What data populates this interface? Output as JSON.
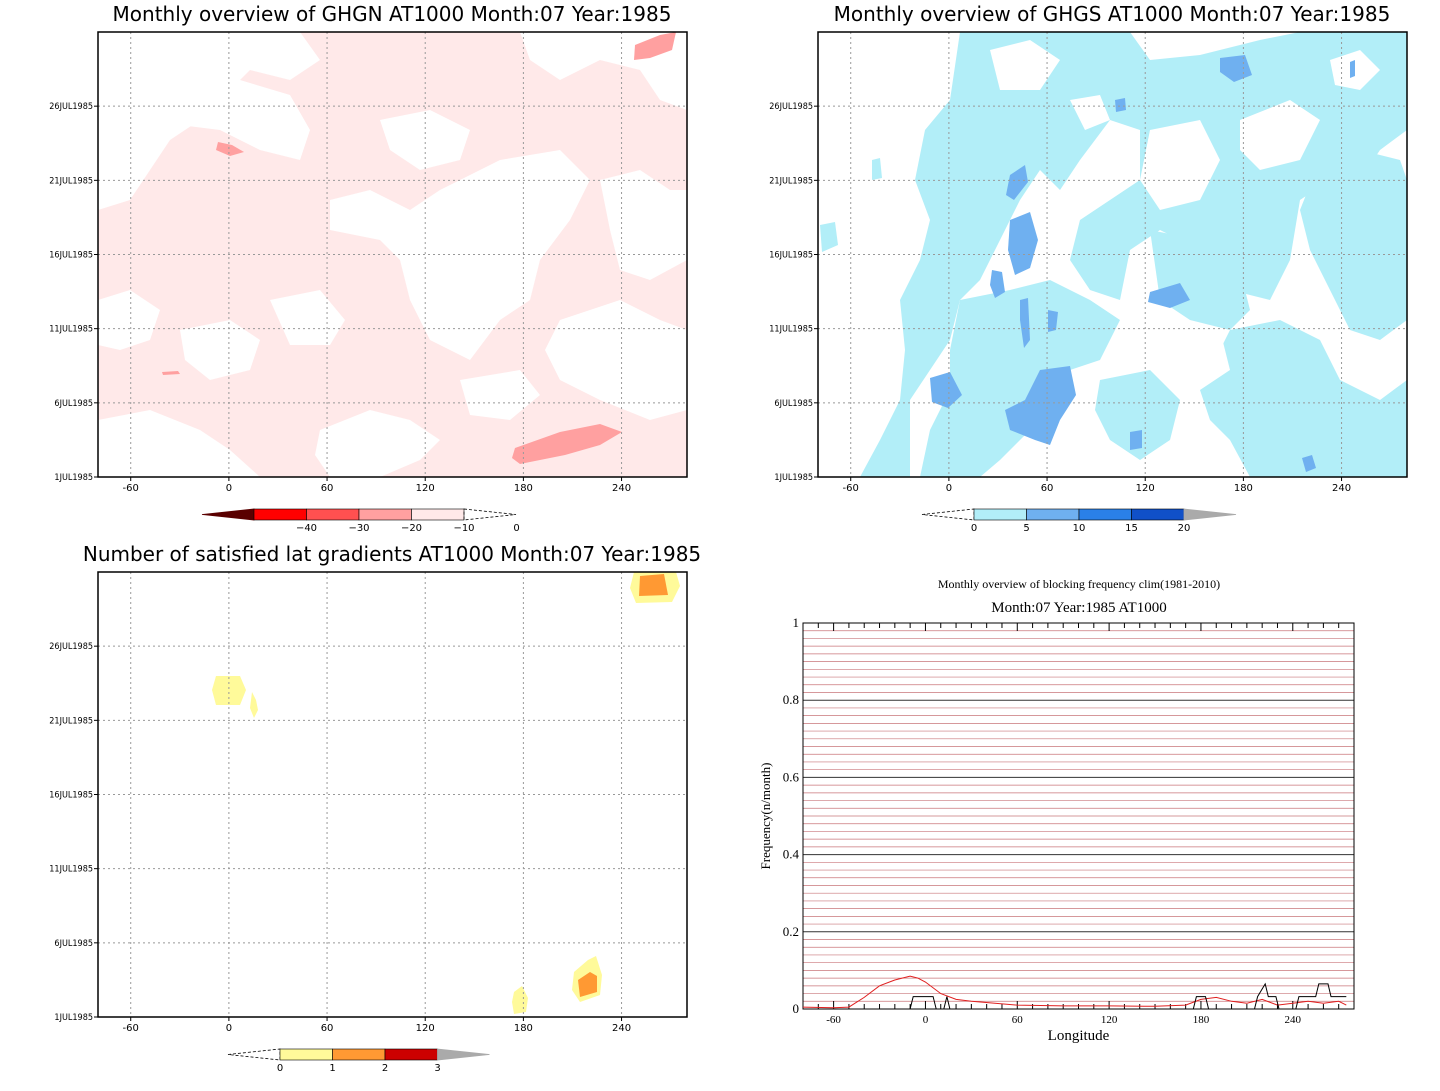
{
  "colors": {
    "ghgn_light": "#ffe9e9",
    "ghgn_mid": "#ffa0a0",
    "ghgs_light": "#b2eef8",
    "ghgs_mid": "#6fb0f0",
    "grad_light": "#fffa9a",
    "grad_mid": "#ff9933",
    "freq_red": "#e02020",
    "freq_black": "#000000"
  },
  "panels": {
    "ghgn": {
      "title": "Monthly overview of GHGN AT1000 Month:07 Year:1985"
    },
    "ghgs": {
      "title": "Monthly overview of GHGS AT1000 Month:07 Year:1985"
    },
    "grad": {
      "title": "Number of satisfied lat gradients AT1000 Month:07 Year:1985"
    },
    "freq": {
      "title": "Monthly overview of blocking frequency clim(1981-2010)",
      "subtitle": "Month:07 Year:1985  AT1000"
    }
  },
  "chart_data": [
    {
      "type": "heatmap",
      "title": "Monthly overview of GHGN AT1000 Month:07 Year:1985",
      "x_ticks": [
        "-60",
        "0",
        "60",
        "120",
        "180",
        "240"
      ],
      "y_ticks": [
        "1JUL1985",
        "6JUL1985",
        "11JUL1985",
        "16JUL1985",
        "21JUL1985",
        "26JUL1985"
      ],
      "xlim": [
        -80,
        280
      ],
      "ylim": [
        1,
        31
      ],
      "colorbar": {
        "labels": [
          "−40",
          "−30",
          "−20",
          "−10",
          "0"
        ],
        "colors": [
          "#5a0000",
          "#ff0000",
          "#ff5050",
          "#ffa0a0",
          "#ffe9e9"
        ]
      },
      "regions": [
        {
          "level": "-10..0",
          "description_free": true,
          "lon": [
            -80,
            280
          ],
          "day": [
            1,
            31
          ]
        }
      ]
    },
    {
      "type": "heatmap",
      "title": "Monthly overview of GHGS AT1000 Month:07 Year:1985",
      "x_ticks": [
        "-60",
        "0",
        "60",
        "120",
        "180",
        "240"
      ],
      "y_ticks": [
        "1JUL1985",
        "6JUL1985",
        "11JUL1985",
        "16JUL1985",
        "21JUL1985",
        "26JUL1985"
      ],
      "xlim": [
        -80,
        280
      ],
      "ylim": [
        1,
        31
      ],
      "colorbar": {
        "labels": [
          "0",
          "5",
          "10",
          "15",
          "20"
        ],
        "colors": [
          "#b2eef8",
          "#6fb0f0",
          "#2a80e8",
          "#1050c8",
          "#aaaaaa"
        ]
      }
    },
    {
      "type": "heatmap",
      "title": "Number of satisfied lat gradients AT1000 Month:07 Year:1985",
      "x_ticks": [
        "-60",
        "0",
        "60",
        "120",
        "180",
        "240"
      ],
      "y_ticks": [
        "1JUL1985",
        "6JUL1985",
        "11JUL1985",
        "16JUL1985",
        "21JUL1985",
        "26JUL1985"
      ],
      "xlim": [
        -80,
        280
      ],
      "ylim": [
        1,
        31
      ],
      "colorbar": {
        "labels": [
          "0",
          "1",
          "2",
          "3"
        ],
        "colors": [
          "#fffa9a",
          "#ff9933",
          "#cc0000",
          "#aaaaaa"
        ]
      }
    },
    {
      "type": "line",
      "title": "Monthly overview of blocking frequency clim(1981-2010)",
      "subtitle": "Month:07 Year:1985  AT1000",
      "xlabel": "Longitude",
      "ylabel": "Frequency(n/month)",
      "x_ticks": [
        "-60",
        "0",
        "60",
        "120",
        "180",
        "240"
      ],
      "y_ticks": [
        "0",
        "0.2",
        "0.4",
        "0.6",
        "0.8",
        "1"
      ],
      "xlim": [
        -80,
        280
      ],
      "ylim": [
        0,
        1
      ],
      "series": [
        {
          "color": "#e02020",
          "x": [
            -80,
            -60,
            -50,
            -40,
            -30,
            -20,
            -10,
            -5,
            0,
            10,
            20,
            30,
            60,
            90,
            120,
            150,
            170,
            180,
            190,
            200,
            210,
            220,
            230,
            240,
            250,
            260,
            270,
            275
          ],
          "y": [
            0.005,
            0.003,
            0.005,
            0.03,
            0.06,
            0.075,
            0.085,
            0.08,
            0.07,
            0.04,
            0.025,
            0.02,
            0.01,
            0.008,
            0.008,
            0.007,
            0.01,
            0.025,
            0.03,
            0.02,
            0.015,
            0.025,
            0.01,
            0.015,
            0.02,
            0.015,
            0.02,
            0.01
          ]
        },
        {
          "color": "#000000",
          "x": [
            -80,
            -10,
            -8,
            5,
            7,
            12,
            14,
            16,
            18,
            175,
            177,
            183,
            185,
            215,
            217,
            222,
            224,
            229,
            231,
            242,
            244,
            255,
            257,
            263,
            265,
            275
          ],
          "y": [
            0,
            0,
            0.032,
            0.032,
            0,
            0,
            0.032,
            0,
            0,
            0,
            0.032,
            0.032,
            0,
            0,
            0.032,
            0.065,
            0.032,
            0.032,
            0,
            0,
            0.032,
            0.032,
            0.065,
            0.065,
            0.032,
            0.032
          ]
        }
      ]
    }
  ]
}
